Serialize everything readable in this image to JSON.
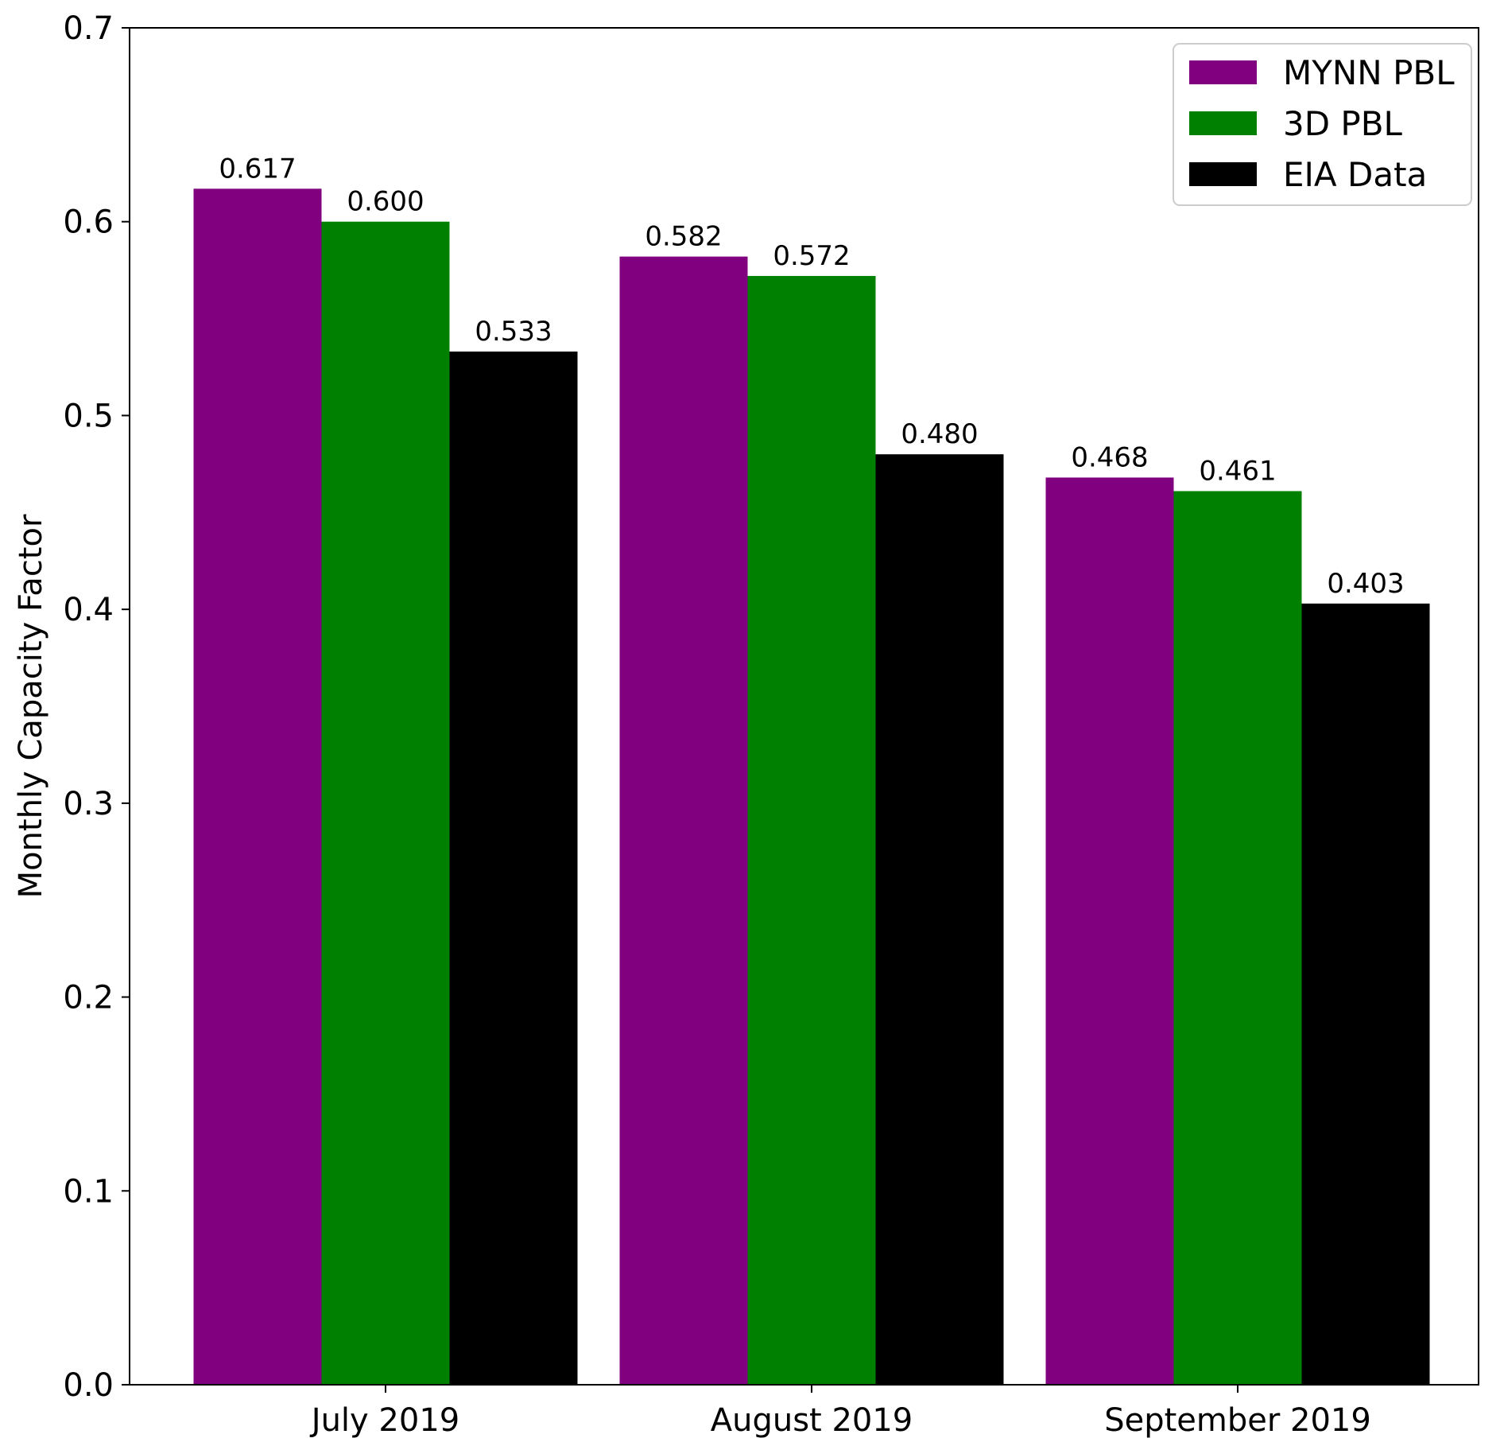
{
  "chart_data": {
    "type": "bar",
    "categories": [
      "July 2019",
      "August 2019",
      "September 2019"
    ],
    "series": [
      {
        "name": "MYNN PBL",
        "color": "#800080",
        "values": [
          0.617,
          0.582,
          0.468
        ],
        "labels": [
          "0.617",
          "0.582",
          "0.468"
        ]
      },
      {
        "name": "3D PBL",
        "color": "#008000",
        "values": [
          0.6,
          0.572,
          0.461
        ],
        "labels": [
          "0.600",
          "0.572",
          "0.461"
        ]
      },
      {
        "name": "EIA Data",
        "color": "#000000",
        "values": [
          0.533,
          0.48,
          0.403
        ],
        "labels": [
          "0.533",
          "0.480",
          "0.403"
        ]
      }
    ],
    "title": "",
    "xlabel": "",
    "ylabel": "Monthly Capacity Factor",
    "ylim": [
      0,
      0.7
    ],
    "yticks": [
      "0.0",
      "0.1",
      "0.2",
      "0.3",
      "0.4",
      "0.5",
      "0.6",
      "0.7"
    ],
    "grid": false,
    "legend_position": "top-right"
  }
}
